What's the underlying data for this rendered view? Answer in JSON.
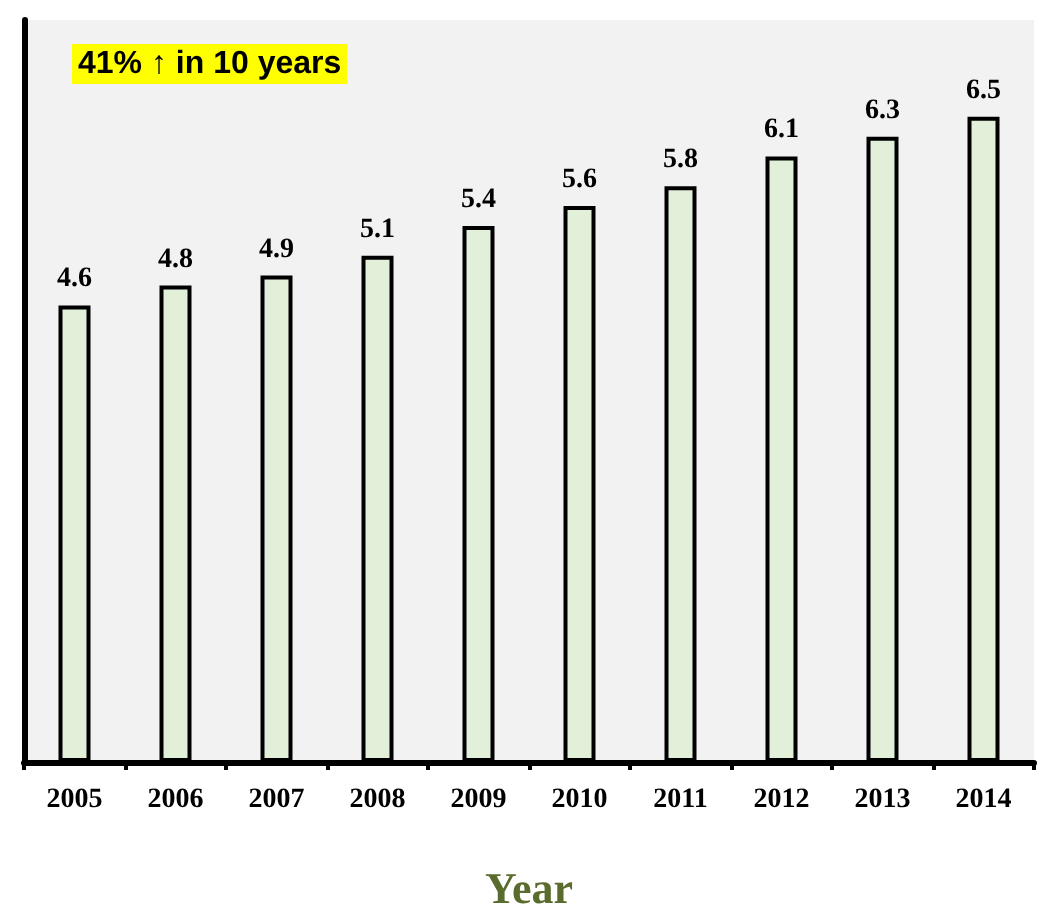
{
  "chart_data": {
    "type": "bar",
    "categories": [
      "2005",
      "2006",
      "2007",
      "2008",
      "2009",
      "2010",
      "2011",
      "2012",
      "2013",
      "2014"
    ],
    "values": [
      4.6,
      4.8,
      4.9,
      5.1,
      5.4,
      5.6,
      5.8,
      6.1,
      6.3,
      6.5
    ],
    "color": "#e2efd9",
    "data_labels": true,
    "xlabel": "Year",
    "annotations": [
      "41% ↑ in 10 years"
    ]
  }
}
